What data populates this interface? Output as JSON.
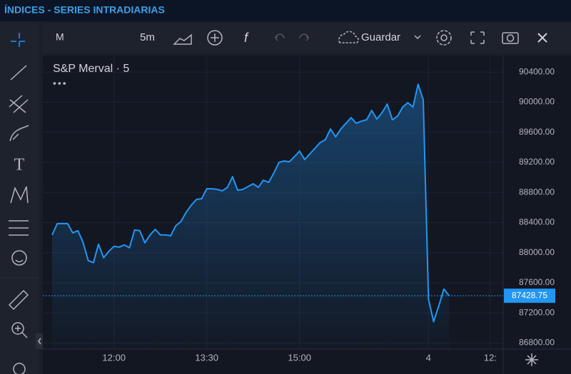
{
  "header": {
    "title": "ÍNDICES - SERIES INTRADIARIAS"
  },
  "toolbar": {
    "symbol": "M",
    "interval": "5m",
    "save": "Guardar"
  },
  "chart_data": {
    "type": "area",
    "title": "S&P Merval · 5",
    "x": [
      0,
      1,
      2,
      3,
      4,
      5,
      6,
      7,
      8,
      9,
      10,
      11,
      12,
      13,
      14,
      15,
      16,
      17,
      18,
      19,
      20,
      21,
      22,
      23,
      24,
      25,
      26,
      27,
      28,
      29,
      30,
      31,
      32,
      33,
      34,
      35,
      36,
      37,
      38,
      39,
      40,
      41,
      42,
      43,
      44,
      45,
      46,
      47,
      48,
      49,
      50,
      51,
      52,
      53,
      54,
      55,
      56,
      57,
      58,
      59,
      60,
      61,
      62,
      63,
      64,
      65,
      66,
      67,
      68,
      69,
      70,
      71,
      72,
      73,
      74,
      75,
      76,
      77
    ],
    "values": [
      88236,
      88387,
      88387,
      88387,
      88264,
      88293,
      88141,
      87896,
      87867,
      88113,
      87934,
      88019,
      88085,
      88075,
      88104,
      88066,
      88302,
      88293,
      88132,
      88236,
      88311,
      88236,
      88236,
      88226,
      88359,
      88415,
      88538,
      88633,
      88708,
      88718,
      88850,
      88850,
      88841,
      88822,
      88869,
      89011,
      88831,
      88841,
      88879,
      88916,
      88869,
      88964,
      88935,
      89058,
      89200,
      89219,
      89209,
      89276,
      89351,
      89238,
      89313,
      89389,
      89464,
      89502,
      89644,
      89540,
      89644,
      89720,
      89795,
      89720,
      89748,
      89767,
      89890,
      89777,
      89862,
      89975,
      89767,
      89814,
      89937,
      89994,
      89937,
      90239,
      90031,
      87385,
      87083,
      87291,
      87518,
      87428.75
    ],
    "color": "#2196f3",
    "xlim": [
      -1.8,
      87.5
    ],
    "xticks": [
      {
        "value": 12,
        "label": "12:00"
      },
      {
        "value": 30,
        "label": "13:30"
      },
      {
        "value": 48,
        "label": "15:00"
      },
      {
        "value": 73,
        "label": "4"
      },
      {
        "value": 85,
        "label": "12:"
      }
    ],
    "ylim": [
      86720,
      90620
    ],
    "yticks": [
      {
        "value": 86800,
        "label": "86800.00"
      },
      {
        "value": 87200,
        "label": "87200.00"
      },
      {
        "value": 87600,
        "label": "87600.00"
      },
      {
        "value": 88000,
        "label": "88000.00"
      },
      {
        "value": 88400,
        "label": "88400.00"
      },
      {
        "value": 88800,
        "label": "88800.00"
      },
      {
        "value": 89200,
        "label": "89200.00"
      },
      {
        "value": 89600,
        "label": "89600.00"
      },
      {
        "value": 90000,
        "label": "90000.00"
      },
      {
        "value": 90400,
        "label": "90400.00"
      }
    ],
    "last_price": 87428.75,
    "grid": true
  }
}
